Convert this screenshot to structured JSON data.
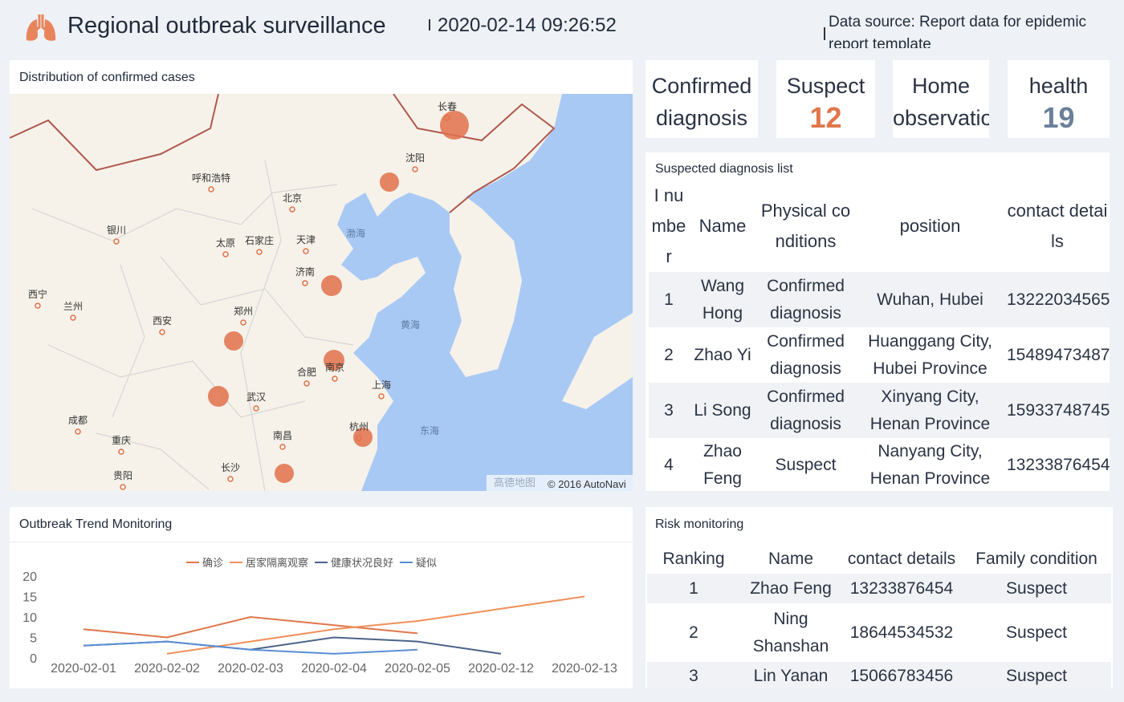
{
  "header": {
    "title": "Regional outbreak surveillance",
    "time": "2020-02-14 09:26:52",
    "source": "Data source: Report data for epidemic report template"
  },
  "map": {
    "title": "Distribution of confirmed cases",
    "labels": [
      "长春",
      "沈阳",
      "呼和浩特",
      "北京",
      "银川",
      "太原",
      "石家庄",
      "天津",
      "渤海",
      "济南",
      "西宁",
      "兰州",
      "郑州",
      "西安",
      "黄海",
      "合肥",
      "南京",
      "上海",
      "武汉",
      "成都",
      "杭州",
      "东海",
      "重庆",
      "南昌",
      "长沙",
      "贵阳"
    ],
    "logo": "高德地图",
    "attribution": "© 2016 AutoNavi"
  },
  "kpis": [
    {
      "label": "Confirmed diagnosis"
    },
    {
      "label": "Suspect",
      "value": 12
    },
    {
      "label": "Home observatio"
    },
    {
      "label": "health",
      "value": 19
    }
  ],
  "suspected": {
    "title": "Suspected diagnosis list",
    "columns": [
      "I number",
      "Name",
      "Physical conditions",
      "position",
      "contact details"
    ],
    "rows": [
      [
        "1",
        "Wang Hong",
        "Confirmed diagnosis",
        "Wuhan, Hubei",
        "13222034565"
      ],
      [
        "2",
        "Zhao Yi",
        "Confirmed diagnosis",
        "Huanggang City, Hubei Province",
        "15489473487"
      ],
      [
        "3",
        "Li Song",
        "Confirmed diagnosis",
        "Xinyang City, Henan Province",
        "15933748745"
      ],
      [
        "4",
        "Zhao Feng",
        "Suspect",
        "Nanyang City, Henan Province",
        "13233876454"
      ]
    ]
  },
  "chart_data": {
    "type": "line",
    "title": "Outbreak Trend Monitoring",
    "categories": [
      "2020-02-01",
      "2020-02-02",
      "2020-02-03",
      "2020-02-04",
      "2020-02-05",
      "2020-02-12",
      "2020-02-13"
    ],
    "series": [
      {
        "name": "确诊",
        "color": "#e0764a",
        "values": [
          7,
          5,
          10,
          8,
          6,
          null,
          null
        ]
      },
      {
        "name": "居家隔离观察",
        "color": "#f0905a",
        "values": [
          null,
          1,
          4,
          7,
          9,
          12,
          15
        ]
      },
      {
        "name": "健康状况良好",
        "color": "#4a6488",
        "values": [
          3,
          4,
          2,
          5,
          4,
          1,
          null
        ]
      },
      {
        "name": "疑似",
        "color": "#5b8ed6",
        "values": [
          3,
          4,
          2,
          1,
          2,
          null,
          null
        ]
      }
    ],
    "ylim": [
      0,
      20
    ],
    "yticks": [
      0,
      5,
      10,
      15,
      20
    ],
    "legend": "top"
  },
  "risk": {
    "title": "Risk monitoring",
    "columns": [
      "Ranking",
      "Name",
      "contact details",
      "Family condition"
    ],
    "rows": [
      [
        "1",
        "Zhao Feng",
        "13233876454",
        "Suspect"
      ],
      [
        "2",
        "Ning Shanshan",
        "18644534532",
        "Suspect"
      ],
      [
        "3",
        "Lin Yanan",
        "15066783456",
        "Suspect"
      ]
    ]
  }
}
